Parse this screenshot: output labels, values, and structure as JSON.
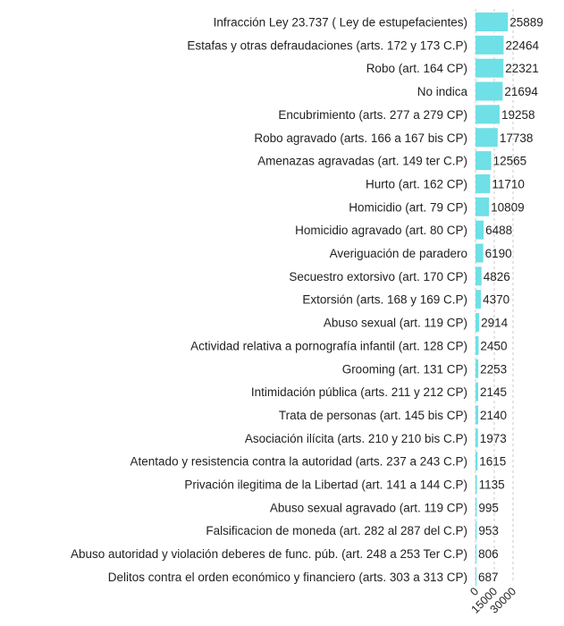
{
  "chart_data": {
    "type": "bar",
    "orientation": "horizontal",
    "categories": [
      "Infracción Ley 23.737 ( Ley de estupefacientes)",
      "Estafas y otras defraudaciones (arts. 172 y 173 C.P)",
      "Robo (art. 164 CP)",
      "No indica",
      "Encubrimiento (arts. 277 a 279 CP)",
      "Robo agravado (arts. 166 a 167 bis CP)",
      "Amenazas agravadas (art. 149 ter C.P)",
      "Hurto (art. 162 CP)",
      "Homicidio (art. 79 CP)",
      "Homicidio agravado (art. 80 CP)",
      "Averiguación de paradero",
      "Secuestro extorsivo (art. 170 CP)",
      "Extorsión (arts. 168 y 169 C.P)",
      "Abuso sexual (art. 119 CP)",
      "Actividad relativa a pornografía infantil (art. 128 CP)",
      "Grooming (art. 131 CP)",
      "Intimidación pública (arts. 211 y 212 CP)",
      "Trata de personas (art. 145 bis CP)",
      "Asociación ilícita (arts. 210 y 210 bis C.P)",
      "Atentado y resistencia contra la autoridad (arts. 237 a 243 C.P)",
      "Privación ilegitima de la Libertad (art. 141 a 144 C.P)",
      "Abuso sexual agravado (art. 119 CP)",
      "Falsificacion de moneda (art. 282 al 287 del C.P)",
      "Abuso autoridad y violación deberes de func. púb. (art. 248 a 253 Ter C.P)",
      "Delitos contra el orden económico y financiero (arts. 303 a 313 CP)"
    ],
    "values": [
      25889,
      22464,
      22321,
      21694,
      19258,
      17738,
      12565,
      11710,
      10809,
      6488,
      6190,
      4826,
      4370,
      2914,
      2450,
      2253,
      2145,
      2140,
      1973,
      1615,
      1135,
      995,
      953,
      806,
      687
    ],
    "x_ticks": [
      "0",
      "15000",
      "30000"
    ],
    "xlim": [
      0,
      30000
    ],
    "bar_color": "#6ee0e6",
    "grid": true,
    "data_labels": true,
    "title": "",
    "xlabel": "",
    "ylabel": ""
  }
}
